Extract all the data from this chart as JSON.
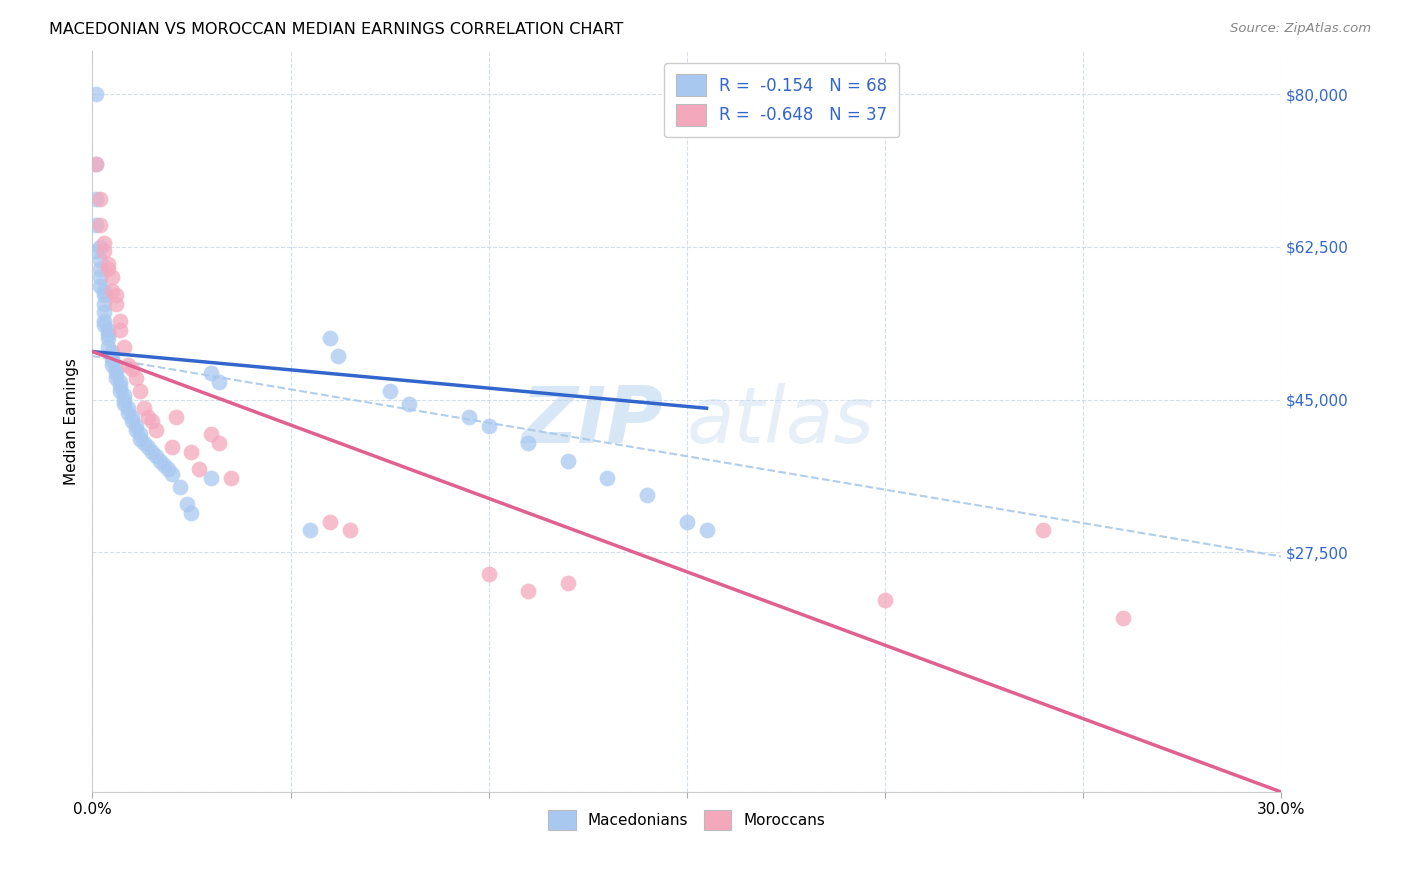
{
  "title": "MACEDONIAN VS MOROCCAN MEDIAN EARNINGS CORRELATION CHART",
  "source": "Source: ZipAtlas.com",
  "ylabel": "Median Earnings",
  "x_min": 0.0,
  "x_max": 0.3,
  "y_min": 0,
  "y_max": 85000,
  "ytick_vals": [
    0,
    27500,
    45000,
    62500,
    80000
  ],
  "ytick_labels": [
    "",
    "$27,500",
    "$45,000",
    "$62,500",
    "$80,000"
  ],
  "xtick_vals": [
    0.0,
    0.05,
    0.1,
    0.15,
    0.2,
    0.25,
    0.3
  ],
  "xtick_labels": [
    "0.0%",
    "",
    "",
    "",
    "",
    "",
    "30.0%"
  ],
  "legend_mac": "R =  -0.154   N = 68",
  "legend_mor": "R =  -0.648   N = 37",
  "blue_scatter": "#A8C8F0",
  "pink_scatter": "#F4A8BC",
  "blue_line": "#3366CC",
  "pink_line": "#E06090",
  "dashed_line": "#A8C8E8",
  "bg": "#FFFFFF",
  "watermark": "ZIPatlas",
  "blue_line_x": [
    0.0,
    0.155
  ],
  "blue_line_y": [
    50500,
    44000
  ],
  "pink_line_x": [
    0.0,
    0.3
  ],
  "pink_line_y": [
    50500,
    0
  ],
  "dash_line_x": [
    0.0,
    0.3
  ],
  "dash_line_y": [
    50000,
    27000
  ],
  "mac_x": [
    0.001,
    0.001,
    0.001,
    0.001,
    0.001,
    0.002,
    0.002,
    0.002,
    0.002,
    0.002,
    0.003,
    0.003,
    0.003,
    0.003,
    0.003,
    0.003,
    0.004,
    0.004,
    0.004,
    0.004,
    0.005,
    0.005,
    0.005,
    0.005,
    0.006,
    0.006,
    0.006,
    0.007,
    0.007,
    0.007,
    0.008,
    0.008,
    0.008,
    0.009,
    0.009,
    0.01,
    0.01,
    0.011,
    0.011,
    0.012,
    0.012,
    0.013,
    0.014,
    0.015,
    0.016,
    0.017,
    0.018,
    0.019,
    0.02,
    0.022,
    0.024,
    0.025,
    0.03,
    0.032,
    0.06,
    0.062,
    0.075,
    0.08,
    0.095,
    0.1,
    0.11,
    0.12,
    0.13,
    0.14,
    0.15,
    0.155,
    0.03,
    0.055
  ],
  "mac_y": [
    80000,
    72000,
    68000,
    65000,
    62000,
    62500,
    61000,
    60000,
    59000,
    58000,
    57500,
    57000,
    56000,
    55000,
    54000,
    53500,
    53000,
    52500,
    52000,
    51000,
    50500,
    50000,
    49500,
    49000,
    48500,
    48000,
    47500,
    47000,
    46500,
    46000,
    45500,
    45000,
    44500,
    44000,
    43500,
    43000,
    42500,
    42000,
    41500,
    41000,
    40500,
    40000,
    39500,
    39000,
    38500,
    38000,
    37500,
    37000,
    36500,
    35000,
    33000,
    32000,
    48000,
    47000,
    52000,
    50000,
    46000,
    44500,
    43000,
    42000,
    40000,
    38000,
    36000,
    34000,
    31000,
    30000,
    36000,
    30000
  ],
  "mor_x": [
    0.001,
    0.002,
    0.002,
    0.003,
    0.003,
    0.004,
    0.004,
    0.005,
    0.005,
    0.006,
    0.006,
    0.007,
    0.007,
    0.008,
    0.009,
    0.01,
    0.011,
    0.012,
    0.013,
    0.014,
    0.015,
    0.016,
    0.02,
    0.021,
    0.025,
    0.027,
    0.03,
    0.032,
    0.035,
    0.06,
    0.065,
    0.1,
    0.11,
    0.12,
    0.2,
    0.24,
    0.26
  ],
  "mor_y": [
    72000,
    68000,
    65000,
    63000,
    62000,
    60500,
    60000,
    59000,
    57500,
    57000,
    56000,
    54000,
    53000,
    51000,
    49000,
    48500,
    47500,
    46000,
    44000,
    43000,
    42500,
    41500,
    39500,
    43000,
    39000,
    37000,
    41000,
    40000,
    36000,
    31000,
    30000,
    25000,
    23000,
    24000,
    22000,
    30000,
    20000
  ]
}
